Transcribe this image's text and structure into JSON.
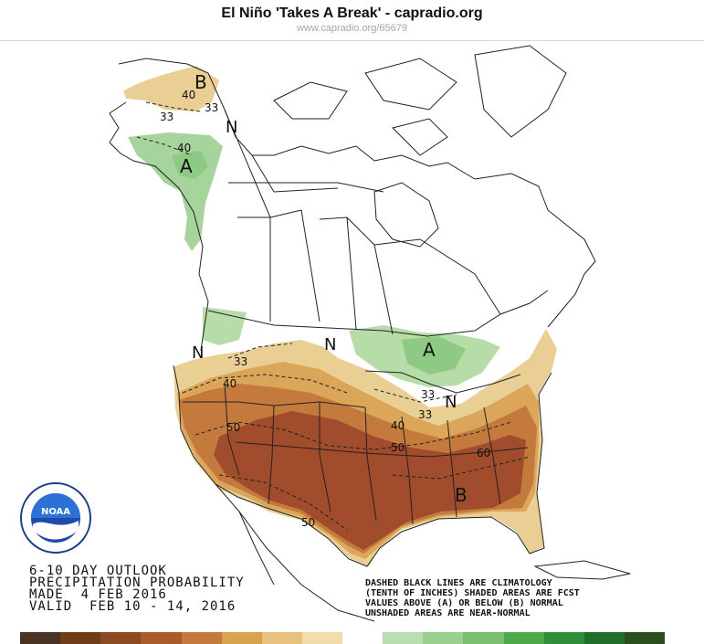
{
  "header": {
    "title": "El Niño 'Takes A Break' - capradio.org",
    "subtitle": "www.capradio.org/65679"
  },
  "map_labels": {
    "b_alaska": "B",
    "a_alaska": "A",
    "a_great_lakes": "A",
    "b_southeast": "B",
    "n_yukon": "N",
    "n_nw": "N",
    "n_plains": "N",
    "n_ohio": "N",
    "c40_ak_top": "40",
    "c33_ak_top": "33",
    "c33_ak_mid": "33",
    "c40_ak_green": "40",
    "c33_nw": "33",
    "c40_nw": "40",
    "c33_lakes": "33",
    "c33_ohio": "33",
    "c40_mid": "40",
    "c50_west": "50",
    "c50_mid": "50",
    "c60_se": "60",
    "c50_sw": "50"
  },
  "legend": {
    "line1": "6-10 DAY OUTLOOK",
    "line2": "PRECIPITATION PROBABILITY",
    "line3": "MADE  4 FEB 2016",
    "line4": "VALID  FEB 10 - 14, 2016"
  },
  "notes": {
    "line1": "DASHED BLACK LINES ARE CLIMATOLOGY",
    "line2": "(TENTH OF INCHES) SHADED AREAS ARE FCST",
    "line3": "VALUES ABOVE (A) OR BELOW (B) NORMAL",
    "line4": "UNSHADED AREAS ARE NEAR-NORMAL"
  },
  "logo": {
    "text": "NOAA",
    "icon": "noaa-logo-icon"
  },
  "colorbar": [
    "#4a3322",
    "#6e3c17",
    "#8c4a22",
    "#a95b2c",
    "#c47a3c",
    "#d9a24e",
    "#e8c27d",
    "#f2dcaa",
    "#ffffff",
    "#b8ddb0",
    "#9ad08f",
    "#78c06f",
    "#4caa4a",
    "#2e8e3a",
    "#1f6e2a",
    "#2a4f1c"
  ],
  "colors": {
    "below_low": "#e9cf94",
    "below_mid": "#dba55a",
    "below_high": "#c47a3c",
    "below_top": "#a14c2c",
    "above_low": "#b6dca8",
    "above_mid": "#8ec985",
    "outline": "#222222"
  }
}
